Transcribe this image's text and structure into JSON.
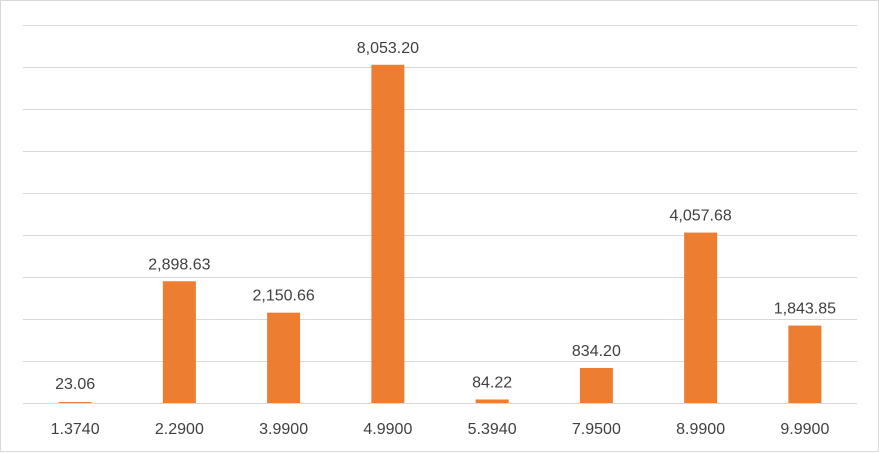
{
  "chart_data": {
    "type": "bar",
    "categories": [
      "1.3740",
      "2.2900",
      "3.9900",
      "4.9900",
      "5.3940",
      "7.9500",
      "8.9900",
      "9.9900"
    ],
    "values": [
      23.06,
      2898.63,
      2150.66,
      8053.2,
      84.22,
      834.2,
      4057.68,
      1843.85
    ],
    "data_labels": [
      "23.06",
      "2,898.63",
      "2,150.66",
      "8,053.20",
      "84.22",
      "834.20",
      "4,057.68",
      "1,843.85"
    ],
    "title": "",
    "xlabel": "",
    "ylabel": "",
    "ylim": [
      0,
      9000
    ],
    "gridlines": 9,
    "grid": true,
    "legend": "none",
    "bar_color": "#ED7D31",
    "grid_color": "#d9d9d9"
  }
}
